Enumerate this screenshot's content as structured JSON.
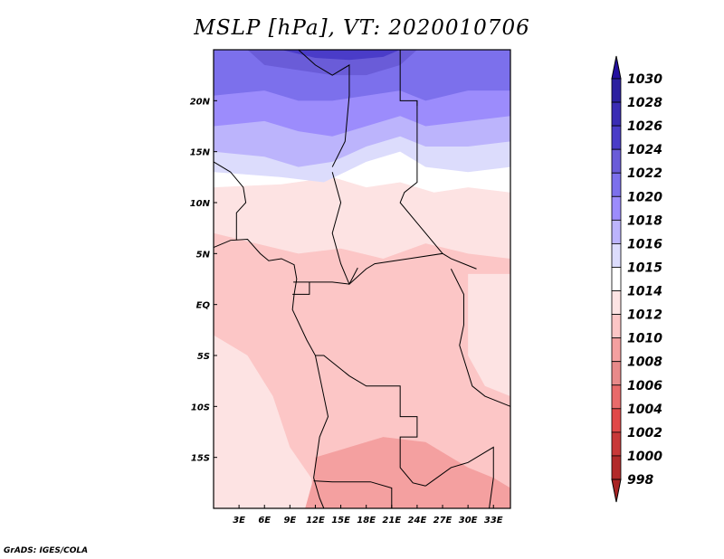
{
  "title": "MSLP [hPa], VT: 2020010706",
  "footer": "GrADS: IGES/COLA",
  "map": {
    "lon_range": [
      0,
      35
    ],
    "lat_range": [
      -20,
      25
    ],
    "lat_ticks": [
      {
        "value": 20,
        "label": "20N"
      },
      {
        "value": 15,
        "label": "15N"
      },
      {
        "value": 10,
        "label": "10N"
      },
      {
        "value": 5,
        "label": "5N"
      },
      {
        "value": 0,
        "label": "EQ"
      },
      {
        "value": -5,
        "label": "5S"
      },
      {
        "value": -10,
        "label": "10S"
      },
      {
        "value": -15,
        "label": "15S"
      }
    ],
    "lon_ticks": [
      {
        "value": 3,
        "label": "3E"
      },
      {
        "value": 6,
        "label": "6E"
      },
      {
        "value": 9,
        "label": "9E"
      },
      {
        "value": 12,
        "label": "12E"
      },
      {
        "value": 15,
        "label": "15E"
      },
      {
        "value": 18,
        "label": "18E"
      },
      {
        "value": 21,
        "label": "21E"
      },
      {
        "value": 24,
        "label": "24E"
      },
      {
        "value": 27,
        "label": "27E"
      },
      {
        "value": 30,
        "label": "30E"
      },
      {
        "value": 33,
        "label": "33E"
      }
    ]
  },
  "colorbar": {
    "labels": [
      "1030",
      "1028",
      "1026",
      "1024",
      "1022",
      "1020",
      "1018",
      "1016",
      "1015",
      "1014",
      "1012",
      "1010",
      "1008",
      "1006",
      "1004",
      "1002",
      "1000",
      "998"
    ],
    "colors_top_to_bottom": [
      "#2410a0",
      "#2c20a0",
      "#3a2cb4",
      "#4a3cc8",
      "#6a5cd8",
      "#7c70ec",
      "#9c8cfc",
      "#bcb4fc",
      "#dcdcfc",
      "#ffffff",
      "#fde3e3",
      "#fcc6c6",
      "#f4a0a0",
      "#e88a8a",
      "#e86a6a",
      "#e04848",
      "#c83838",
      "#b22a2a",
      "#a82424"
    ]
  }
}
